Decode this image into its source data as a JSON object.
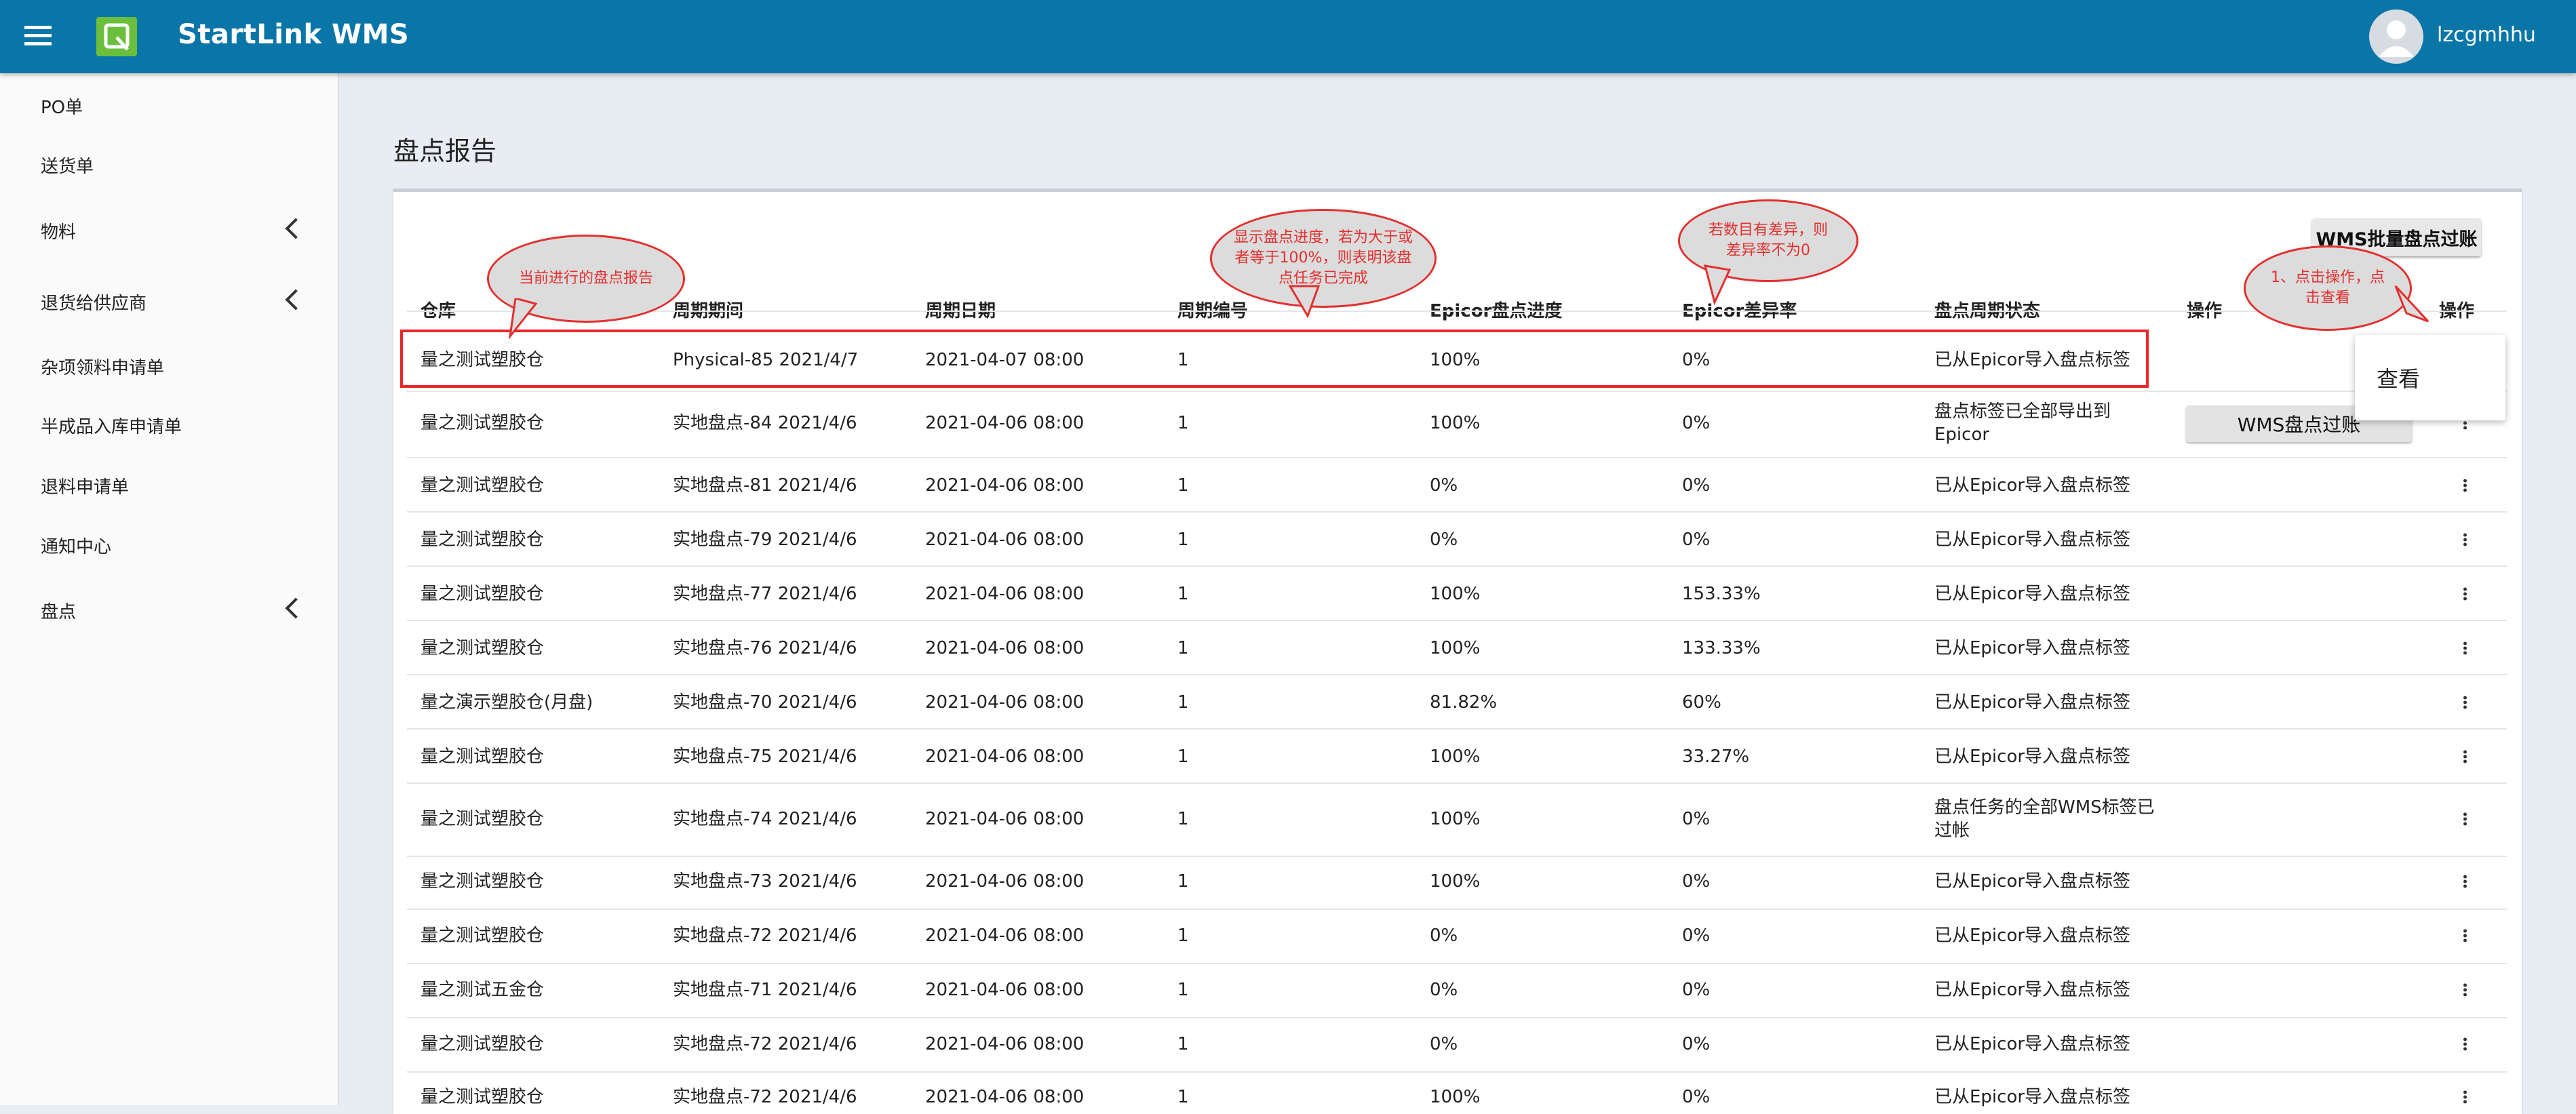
{
  "app": {
    "title": "StartLink WMS",
    "user": "lzcgmhhu",
    "brand_color": "#0a76a8",
    "logo_color": "#6bbf3c"
  },
  "sidebar": {
    "items": [
      {
        "label": "PO单",
        "expandable": false
      },
      {
        "label": "送货单",
        "expandable": false
      },
      {
        "label": "物料",
        "expandable": true
      },
      {
        "label": "退货给供应商",
        "expandable": true
      },
      {
        "label": "杂项领料申请单",
        "expandable": false
      },
      {
        "label": "半成品入库申请单",
        "expandable": false
      },
      {
        "label": "退料申请单",
        "expandable": false
      },
      {
        "label": "通知中心",
        "expandable": false
      },
      {
        "label": "盘点",
        "expandable": true
      }
    ]
  },
  "page": {
    "title": "盘点报告",
    "batch_button": "WMS批量盘点过账",
    "post_button": "WMS盘点过账",
    "menu_view": "查看"
  },
  "table": {
    "columns": [
      "仓库",
      "周期期间",
      "周期日期",
      "周期编号",
      "Epicor盘点进度",
      "Epicor差异率",
      "盘点周期状态",
      "操作",
      "操作"
    ],
    "rows": [
      [
        "量之测试塑胶仓",
        "Physical-85 2021/4/7",
        "2021-04-07 08:00",
        "1",
        "100%",
        "0%",
        "已从Epicor导入盘点标签"
      ],
      [
        "量之测试塑胶仓",
        "实地盘点-84 2021/4/6",
        "2021-04-06 08:00",
        "1",
        "100%",
        "0%",
        "盘点标签已全部导出到Epicor"
      ],
      [
        "量之测试塑胶仓",
        "实地盘点-81 2021/4/6",
        "2021-04-06 08:00",
        "1",
        "0%",
        "0%",
        "已从Epicor导入盘点标签"
      ],
      [
        "量之测试塑胶仓",
        "实地盘点-79 2021/4/6",
        "2021-04-06 08:00",
        "1",
        "0%",
        "0%",
        "已从Epicor导入盘点标签"
      ],
      [
        "量之测试塑胶仓",
        "实地盘点-77 2021/4/6",
        "2021-04-06 08:00",
        "1",
        "100%",
        "153.33%",
        "已从Epicor导入盘点标签"
      ],
      [
        "量之测试塑胶仓",
        "实地盘点-76 2021/4/6",
        "2021-04-06 08:00",
        "1",
        "100%",
        "133.33%",
        "已从Epicor导入盘点标签"
      ],
      [
        "量之演示塑胶仓(月盘)",
        "实地盘点-70 2021/4/6",
        "2021-04-06 08:00",
        "1",
        "81.82%",
        "60%",
        "已从Epicor导入盘点标签"
      ],
      [
        "量之测试塑胶仓",
        "实地盘点-75 2021/4/6",
        "2021-04-06 08:00",
        "1",
        "100%",
        "33.27%",
        "已从Epicor导入盘点标签"
      ],
      [
        "量之测试塑胶仓",
        "实地盘点-74 2021/4/6",
        "2021-04-06 08:00",
        "1",
        "100%",
        "0%",
        "盘点任务的全部WMS标签已过帐"
      ],
      [
        "量之测试塑胶仓",
        "实地盘点-73 2021/4/6",
        "2021-04-06 08:00",
        "1",
        "100%",
        "0%",
        "已从Epicor导入盘点标签"
      ],
      [
        "量之测试塑胶仓",
        "实地盘点-72 2021/4/6",
        "2021-04-06 08:00",
        "1",
        "0%",
        "0%",
        "已从Epicor导入盘点标签"
      ],
      [
        "量之测试五金仓",
        "实地盘点-71 2021/4/6",
        "2021-04-06 08:00",
        "1",
        "0%",
        "0%",
        "已从Epicor导入盘点标签"
      ],
      [
        "量之测试塑胶仓",
        "实地盘点-72 2021/4/6",
        "2021-04-06 08:00",
        "1",
        "0%",
        "0%",
        "已从Epicor导入盘点标签"
      ],
      [
        "量之测试塑胶仓",
        "实地盘点-72 2021/4/6",
        "2021-04-06 08:00",
        "1",
        "100%",
        "0%",
        "已从Epicor导入盘点标签"
      ]
    ]
  },
  "annotations": {
    "current_report": "当前进行的盘点报告",
    "progress_note": "显示盘点进度，若为大于或者等于100%，则表明该盘点任务已完成",
    "diff_note": "若数目有差异，则差异率不为0",
    "action_note": "1、点击操作，点击查看",
    "color": "#e3302f"
  }
}
